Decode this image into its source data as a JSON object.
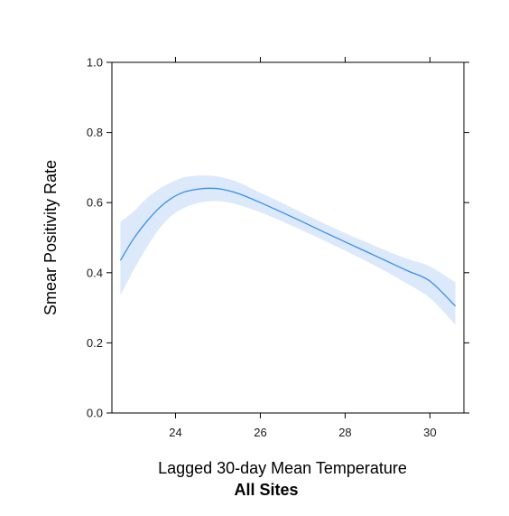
{
  "chart_data": {
    "type": "line",
    "title": "",
    "subtitle": "All Sites",
    "xlabel": "Lagged 30-day Mean Temperature",
    "ylabel": "Smear Positivity Rate",
    "xlim": [
      22.5,
      30.8
    ],
    "ylim": [
      0.0,
      1.0
    ],
    "xticks": [
      24,
      26,
      28,
      30
    ],
    "xtick_labels": [
      "24",
      "26",
      "28",
      "30"
    ],
    "yticks": [
      0.0,
      0.2,
      0.4,
      0.6,
      0.8,
      1.0
    ],
    "ytick_labels": [
      "0.0",
      "0.2",
      "0.4",
      "0.6",
      "0.8",
      "1.0"
    ],
    "grid": false,
    "legend": "none",
    "colors": {
      "line": "#3a8ee6",
      "band": "#dce9fb",
      "axis": "#000000"
    },
    "series": [
      {
        "x": [
          22.7,
          23.0,
          23.3,
          23.6,
          23.9,
          24.2,
          24.5,
          24.8,
          25.1,
          25.5,
          26.0,
          26.5,
          27.0,
          27.5,
          28.0,
          28.5,
          29.0,
          29.5,
          30.0,
          30.6
        ],
        "y": [
          0.435,
          0.495,
          0.543,
          0.583,
          0.612,
          0.63,
          0.638,
          0.641,
          0.638,
          0.625,
          0.6,
          0.573,
          0.545,
          0.516,
          0.488,
          0.46,
          0.432,
          0.404,
          0.376,
          0.305
        ],
        "lower": [
          0.335,
          0.405,
          0.468,
          0.523,
          0.562,
          0.585,
          0.598,
          0.604,
          0.603,
          0.593,
          0.572,
          0.547,
          0.52,
          0.492,
          0.463,
          0.433,
          0.401,
          0.366,
          0.328,
          0.252
        ],
        "upper": [
          0.545,
          0.573,
          0.61,
          0.638,
          0.658,
          0.672,
          0.677,
          0.677,
          0.672,
          0.657,
          0.628,
          0.6,
          0.57,
          0.541,
          0.513,
          0.487,
          0.461,
          0.438,
          0.418,
          0.373
        ]
      }
    ]
  }
}
